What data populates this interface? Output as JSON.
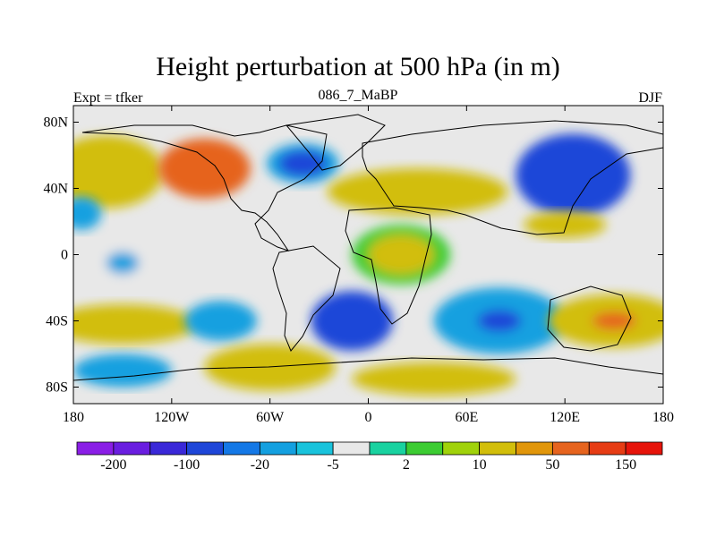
{
  "chart_data": {
    "type": "heatmap",
    "title": "Height perturbation at 500 hPa (in m)",
    "left_string": "Expt = tfker",
    "center_string": "086_7_MaBP",
    "right_string": "DJF",
    "x_ticks": [
      "180",
      "120W",
      "60W",
      "0",
      "60E",
      "120E",
      "180"
    ],
    "x_tick_values": [
      -180,
      -120,
      -60,
      0,
      60,
      120,
      180
    ],
    "y_ticks": [
      "80N",
      "40N",
      "0",
      "40S",
      "80S"
    ],
    "y_tick_values": [
      80,
      40,
      0,
      -40,
      -80
    ],
    "xlim": [
      -180,
      180
    ],
    "ylim": [
      -90,
      90
    ],
    "colorbar": {
      "boundaries": [
        -200,
        -100,
        -20,
        -5,
        2,
        10,
        50,
        150
      ],
      "labels": [
        "-200",
        "-100",
        "-20",
        "-5",
        "2",
        "10",
        "50",
        "150"
      ],
      "colors": [
        "#8a1ee6",
        "#6a1ee0",
        "#3a28d8",
        "#1e46d8",
        "#1478e6",
        "#14a0e0",
        "#19c3dc",
        "#e8e8e8",
        "#19d2a0",
        "#3ccc32",
        "#a0d20a",
        "#d2be0a",
        "#e1960a",
        "#e6641e",
        "#e63c14",
        "#e6140a"
      ]
    },
    "field_blobs": [
      {
        "lon": -160,
        "lat": 50,
        "a": 35,
        "b": 22,
        "value": 40
      },
      {
        "lon": -100,
        "lat": 52,
        "a": 28,
        "b": 18,
        "value": 90
      },
      {
        "lon": -40,
        "lat": 55,
        "a": 22,
        "b": 12,
        "value": -30
      },
      {
        "lon": 30,
        "lat": 38,
        "a": 55,
        "b": 14,
        "value": 40
      },
      {
        "lon": 125,
        "lat": 48,
        "a": 35,
        "b": 25,
        "value": -80
      },
      {
        "lon": 120,
        "lat": 18,
        "a": 25,
        "b": 8,
        "value": 25
      },
      {
        "lon": -175,
        "lat": 25,
        "a": 12,
        "b": 10,
        "value": -10
      },
      {
        "lon": -150,
        "lat": -5,
        "a": 15,
        "b": 10,
        "value": -8
      },
      {
        "lon": 20,
        "lat": 0,
        "a": 30,
        "b": 18,
        "value": 15
      },
      {
        "lon": -150,
        "lat": -42,
        "a": 45,
        "b": 12,
        "value": 40
      },
      {
        "lon": -90,
        "lat": -40,
        "a": 22,
        "b": 12,
        "value": -10
      },
      {
        "lon": -10,
        "lat": -40,
        "a": 25,
        "b": 18,
        "value": -100
      },
      {
        "lon": 80,
        "lat": -40,
        "a": 40,
        "b": 20,
        "value": -25
      },
      {
        "lon": 150,
        "lat": -40,
        "a": 40,
        "b": 16,
        "value": 60
      },
      {
        "lon": -60,
        "lat": -68,
        "a": 40,
        "b": 14,
        "value": 40
      },
      {
        "lon": 40,
        "lat": -75,
        "a": 50,
        "b": 10,
        "value": 30
      },
      {
        "lon": -150,
        "lat": -70,
        "a": 30,
        "b": 10,
        "value": -15
      }
    ]
  }
}
